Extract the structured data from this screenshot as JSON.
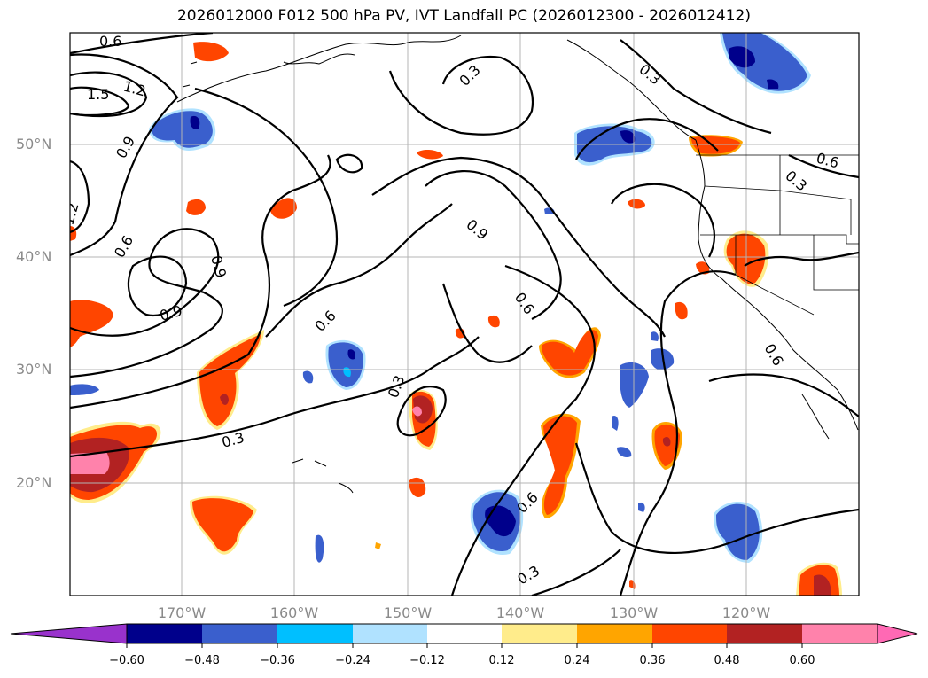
{
  "title": "2026012000 F012 500 hPa PV, IVT Landfall PC (2026012300 - 2026012412)",
  "colors": {
    "levels": [
      "#9932cc",
      "#00008b",
      "#3a5fcd",
      "#00bfff",
      "#b0e2ff",
      "#ffffff",
      "#ffec8b",
      "#ffa500",
      "#ff4500",
      "#b22222",
      "#ff82ab",
      "#ff69b4"
    ],
    "neg_060": "#00008b",
    "neg_048": "#3a5fcd",
    "neg_036": "#00bfff",
    "neg_024": "#b0e2ff",
    "pos_024": "#ffa500",
    "pos_036": "#ff4500",
    "pos_048": "#b22222",
    "pos_060": "#ff82ab"
  },
  "axes": {
    "lat_labels": [
      "50°N",
      "40°N",
      "30°N",
      "20°N"
    ],
    "lon_labels": [
      "170°W",
      "160°W",
      "150°W",
      "140°W",
      "130°W",
      "120°W"
    ]
  },
  "colorbar": {
    "ticks": [
      "−0.60",
      "−0.48",
      "−0.36",
      "−0.24",
      "−0.12",
      "0.12",
      "0.24",
      "0.36",
      "0.48",
      "0.60"
    ]
  },
  "contour_labels": [
    "0.6",
    "1.5",
    "1.2",
    "0.9",
    "1.2",
    "0.6",
    "0.9",
    "0.9",
    "0.6",
    "0.3",
    "0.3",
    "0.3",
    "0.3",
    "0.9",
    "0.6",
    "0.6",
    "0.6",
    "0.3",
    "0.6",
    "0.3"
  ]
}
